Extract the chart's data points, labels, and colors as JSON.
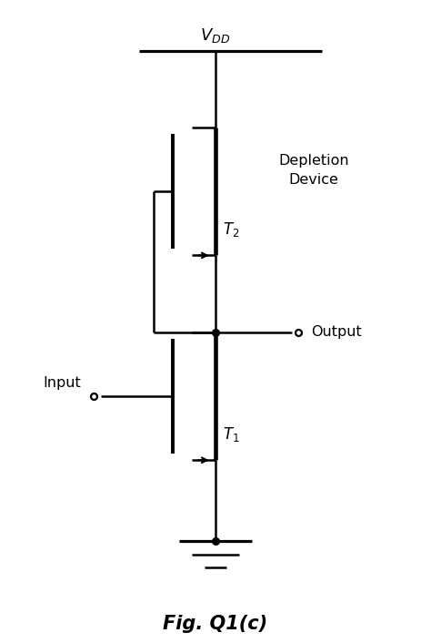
{
  "title": "Fig. Q1(c)",
  "title_fontsize": 15,
  "title_fontweight": "bold",
  "background_color": "#ffffff",
  "line_color": "#000000",
  "line_width": 1.8,
  "text_color": "#000000",
  "depletion_label": "Depletion\nDevice",
  "output_label": "Output",
  "input_label": "Input",
  "fig_width": 4.74,
  "fig_height": 7.06,
  "dpi": 100,
  "xlim": [
    0,
    10
  ],
  "ylim": [
    0,
    14.9
  ],
  "vdd_x": 5.0,
  "vdd_y": 13.8,
  "vdd_rail_x1": 3.2,
  "vdd_rail_x2": 7.5,
  "out_x": 5.0,
  "out_y": 7.2,
  "gnd_y": 1.8
}
